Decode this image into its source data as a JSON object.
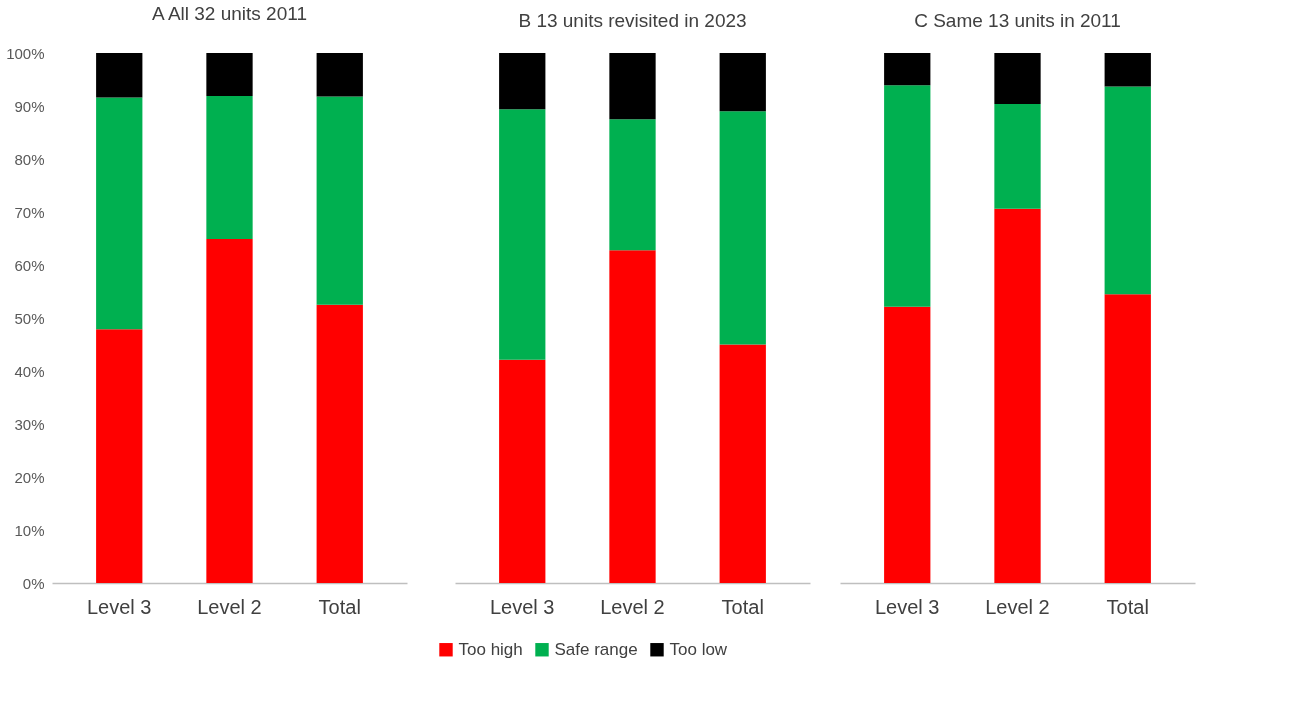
{
  "chart_data": [
    {
      "type": "bar",
      "stacked": true,
      "title": "A  All 32 units 2011",
      "categories": [
        "Level 3",
        "Level 2",
        "Total"
      ],
      "series": [
        {
          "color": "#ff0000",
          "values": [
            47.9,
            64.9,
            52.5
          ]
        },
        {
          "color": "#00b050",
          "values": [
            43.7,
            27.0,
            39.3
          ]
        },
        {
          "color": "#000000",
          "values": [
            8.4,
            8.1,
            8.2
          ]
        }
      ],
      "ylim": [
        0,
        100
      ],
      "yticks": [
        {
          "value": 0,
          "label": "0%"
        },
        {
          "value": 10,
          "label": "10%"
        },
        {
          "value": 20,
          "label": "20%"
        },
        {
          "value": 30,
          "label": "30%"
        },
        {
          "value": 40,
          "label": "40%"
        },
        {
          "value": 50,
          "label": "50%"
        },
        {
          "value": 60,
          "label": "60%"
        },
        {
          "value": 70,
          "label": "70%"
        },
        {
          "value": 80,
          "label": "80%"
        },
        {
          "value": 90,
          "label": "90%"
        },
        {
          "value": 100,
          "label": "100%"
        }
      ],
      "grid": false
    },
    {
      "type": "bar",
      "stacked": true,
      "title": "B 13 units revisited in 2023",
      "categories": [
        "Level 3",
        "Level 2",
        "Total"
      ],
      "series": [
        {
          "name": "Too high",
          "color": "#ff0000",
          "values": [
            42.1,
            62.8,
            45.0
          ]
        },
        {
          "name": "Safe range",
          "color": "#00b050",
          "values": [
            47.3,
            24.7,
            44.0
          ]
        },
        {
          "name": "Too low",
          "color": "#000000",
          "values": [
            10.6,
            12.5,
            11.0
          ]
        }
      ],
      "ylim": [
        0,
        100
      ],
      "tick_labels": "x",
      "grid": false,
      "legend": "bottom"
    },
    {
      "type": "bar",
      "stacked": true,
      "title": "C  Same 13 units in 2011",
      "categories": [
        "Level 3",
        "Level 2",
        "Total"
      ],
      "series": [
        {
          "color": "#ff0000",
          "values": [
            52.1,
            70.6,
            54.5
          ]
        },
        {
          "color": "#00b050",
          "values": [
            41.8,
            19.8,
            39.2
          ]
        },
        {
          "color": "#000000",
          "values": [
            6.1,
            9.6,
            6.3
          ]
        }
      ],
      "ylim": [
        0,
        100
      ],
      "tick_labels": "x",
      "grid": false
    }
  ]
}
